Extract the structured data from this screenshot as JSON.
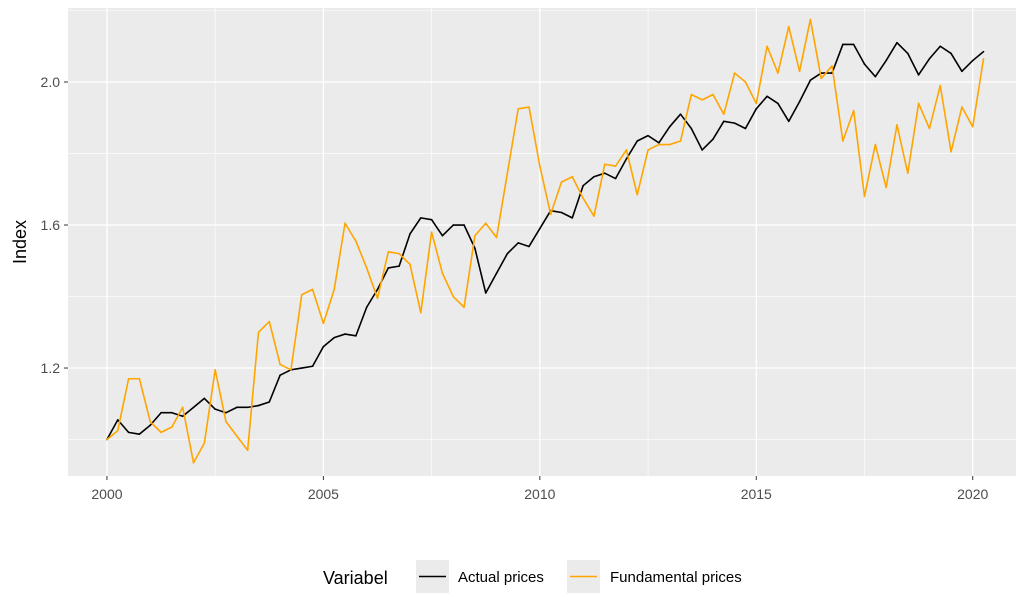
{
  "chart_data": {
    "type": "line",
    "xlabel": "",
    "ylabel": "Index",
    "xlim": [
      1999.1,
      2021.0
    ],
    "ylim": [
      0.898,
      2.207
    ],
    "x_ticks": [
      2000,
      2005,
      2010,
      2015,
      2020
    ],
    "x_tick_labels": [
      "2000",
      "2005",
      "2010",
      "2015",
      "2020"
    ],
    "y_ticks": [
      1.2,
      1.6,
      2.0
    ],
    "y_tick_labels": [
      "1.2",
      "1.6",
      "2.0"
    ],
    "grid": true,
    "background": "#ebebeb",
    "legend": {
      "title": "Variabel",
      "position": "bottom"
    },
    "series": [
      {
        "name": "Actual prices",
        "color": "#000000",
        "points": [
          [
            2000.0,
            1.0
          ],
          [
            2000.25,
            1.055
          ],
          [
            2000.5,
            1.02
          ],
          [
            2000.75,
            1.015
          ],
          [
            2001.0,
            1.04
          ],
          [
            2001.25,
            1.075
          ],
          [
            2001.5,
            1.075
          ],
          [
            2001.75,
            1.065
          ],
          [
            2002.0,
            1.09
          ],
          [
            2002.25,
            1.115
          ],
          [
            2002.5,
            1.085
          ],
          [
            2002.75,
            1.075
          ],
          [
            2003.0,
            1.09
          ],
          [
            2003.25,
            1.09
          ],
          [
            2003.5,
            1.095
          ],
          [
            2003.75,
            1.105
          ],
          [
            2004.0,
            1.18
          ],
          [
            2004.25,
            1.195
          ],
          [
            2004.5,
            1.2
          ],
          [
            2004.75,
            1.205
          ],
          [
            2005.0,
            1.26
          ],
          [
            2005.25,
            1.285
          ],
          [
            2005.5,
            1.295
          ],
          [
            2005.75,
            1.29
          ],
          [
            2006.0,
            1.37
          ],
          [
            2006.25,
            1.42
          ],
          [
            2006.5,
            1.48
          ],
          [
            2006.75,
            1.485
          ],
          [
            2007.0,
            1.575
          ],
          [
            2007.25,
            1.62
          ],
          [
            2007.5,
            1.615
          ],
          [
            2007.75,
            1.57
          ],
          [
            2008.0,
            1.6
          ],
          [
            2008.25,
            1.6
          ],
          [
            2008.5,
            1.535
          ],
          [
            2008.75,
            1.41
          ],
          [
            2009.0,
            1.465
          ],
          [
            2009.25,
            1.52
          ],
          [
            2009.5,
            1.55
          ],
          [
            2009.75,
            1.54
          ],
          [
            2010.0,
            1.59
          ],
          [
            2010.25,
            1.64
          ],
          [
            2010.5,
            1.635
          ],
          [
            2010.75,
            1.62
          ],
          [
            2011.0,
            1.71
          ],
          [
            2011.25,
            1.735
          ],
          [
            2011.5,
            1.745
          ],
          [
            2011.75,
            1.73
          ],
          [
            2012.0,
            1.785
          ],
          [
            2012.25,
            1.835
          ],
          [
            2012.5,
            1.85
          ],
          [
            2012.75,
            1.83
          ],
          [
            2013.0,
            1.875
          ],
          [
            2013.25,
            1.91
          ],
          [
            2013.5,
            1.87
          ],
          [
            2013.75,
            1.81
          ],
          [
            2014.0,
            1.84
          ],
          [
            2014.25,
            1.89
          ],
          [
            2014.5,
            1.885
          ],
          [
            2014.75,
            1.87
          ],
          [
            2015.0,
            1.925
          ],
          [
            2015.25,
            1.96
          ],
          [
            2015.5,
            1.94
          ],
          [
            2015.75,
            1.89
          ],
          [
            2016.0,
            1.945
          ],
          [
            2016.25,
            2.005
          ],
          [
            2016.5,
            2.025
          ],
          [
            2016.75,
            2.025
          ],
          [
            2017.0,
            2.105
          ],
          [
            2017.25,
            2.105
          ],
          [
            2017.5,
            2.05
          ],
          [
            2017.75,
            2.015
          ],
          [
            2018.0,
            2.06
          ],
          [
            2018.25,
            2.11
          ],
          [
            2018.5,
            2.08
          ],
          [
            2018.75,
            2.02
          ],
          [
            2019.0,
            2.065
          ],
          [
            2019.25,
            2.1
          ],
          [
            2019.5,
            2.08
          ],
          [
            2019.75,
            2.03
          ],
          [
            2020.0,
            2.06
          ],
          [
            2020.25,
            2.085
          ]
        ]
      },
      {
        "name": "Fundamental prices",
        "color": "#ffa500",
        "points": [
          [
            2000.0,
            1.0
          ],
          [
            2000.25,
            1.025
          ],
          [
            2000.5,
            1.17
          ],
          [
            2000.75,
            1.17
          ],
          [
            2001.0,
            1.05
          ],
          [
            2001.25,
            1.02
          ],
          [
            2001.5,
            1.035
          ],
          [
            2001.75,
            1.09
          ],
          [
            2002.0,
            0.935
          ],
          [
            2002.25,
            0.99
          ],
          [
            2002.5,
            1.195
          ],
          [
            2002.75,
            1.05
          ],
          [
            2003.0,
            1.01
          ],
          [
            2003.25,
            0.97
          ],
          [
            2003.5,
            1.3
          ],
          [
            2003.75,
            1.33
          ],
          [
            2004.0,
            1.21
          ],
          [
            2004.25,
            1.195
          ],
          [
            2004.5,
            1.405
          ],
          [
            2004.75,
            1.42
          ],
          [
            2005.0,
            1.325
          ],
          [
            2005.25,
            1.42
          ],
          [
            2005.5,
            1.605
          ],
          [
            2005.75,
            1.555
          ],
          [
            2006.0,
            1.48
          ],
          [
            2006.25,
            1.395
          ],
          [
            2006.5,
            1.525
          ],
          [
            2006.75,
            1.52
          ],
          [
            2007.0,
            1.49
          ],
          [
            2007.25,
            1.355
          ],
          [
            2007.5,
            1.58
          ],
          [
            2007.75,
            1.465
          ],
          [
            2008.0,
            1.4
          ],
          [
            2008.25,
            1.37
          ],
          [
            2008.5,
            1.57
          ],
          [
            2008.75,
            1.605
          ],
          [
            2009.0,
            1.565
          ],
          [
            2009.25,
            1.745
          ],
          [
            2009.5,
            1.925
          ],
          [
            2009.75,
            1.93
          ],
          [
            2010.0,
            1.765
          ],
          [
            2010.25,
            1.63
          ],
          [
            2010.5,
            1.72
          ],
          [
            2010.75,
            1.735
          ],
          [
            2011.0,
            1.675
          ],
          [
            2011.25,
            1.625
          ],
          [
            2011.5,
            1.77
          ],
          [
            2011.75,
            1.765
          ],
          [
            2012.0,
            1.81
          ],
          [
            2012.25,
            1.685
          ],
          [
            2012.5,
            1.81
          ],
          [
            2012.75,
            1.825
          ],
          [
            2013.0,
            1.825
          ],
          [
            2013.25,
            1.835
          ],
          [
            2013.5,
            1.965
          ],
          [
            2013.75,
            1.95
          ],
          [
            2014.0,
            1.965
          ],
          [
            2014.25,
            1.91
          ],
          [
            2014.5,
            2.025
          ],
          [
            2014.75,
            2.0
          ],
          [
            2015.0,
            1.94
          ],
          [
            2015.25,
            2.1
          ],
          [
            2015.5,
            2.025
          ],
          [
            2015.75,
            2.155
          ],
          [
            2016.0,
            2.03
          ],
          [
            2016.25,
            2.175
          ],
          [
            2016.5,
            2.01
          ],
          [
            2016.75,
            2.045
          ],
          [
            2017.0,
            1.835
          ],
          [
            2017.25,
            1.92
          ],
          [
            2017.5,
            1.68
          ],
          [
            2017.75,
            1.825
          ],
          [
            2018.0,
            1.705
          ],
          [
            2018.25,
            1.88
          ],
          [
            2018.5,
            1.745
          ],
          [
            2018.75,
            1.94
          ],
          [
            2019.0,
            1.87
          ],
          [
            2019.25,
            1.99
          ],
          [
            2019.5,
            1.805
          ],
          [
            2019.75,
            1.93
          ],
          [
            2020.0,
            1.875
          ],
          [
            2020.25,
            2.065
          ]
        ]
      }
    ]
  }
}
